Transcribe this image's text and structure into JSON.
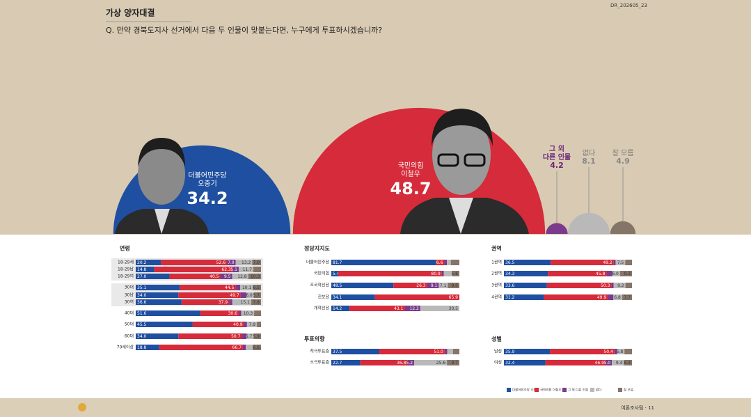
{
  "header": {
    "section": "가상 양자대결",
    "question": "Q. 만약 경북도지사 선거에서 다음 두 인물이 맞붙는다면, 누구에게 투표하시겠습니까?",
    "code": "DR_202605_23"
  },
  "footer": {
    "page": "여론조사팀 · 11"
  },
  "legend": {
    "names": [
      "더불어민주당 오중기",
      "국민의힘 이철우",
      "그 외 다른 인물",
      "없다",
      "잘 모름"
    ],
    "colors": [
      "#1f4fa0",
      "#d62b3a",
      "#7b3a8c",
      "#b9b9b9",
      "#857468"
    ]
  },
  "chart_data": [
    {
      "type": "semicircle",
      "labels": [
        [
          "더불어민주당",
          "오중기"
        ],
        [
          "국민의힘",
          "이철우"
        ],
        [
          "그 외",
          "다른 인물"
        ],
        [
          "없다"
        ],
        [
          "잘 모름"
        ]
      ],
      "values": [
        34.2,
        48.7,
        4.2,
        8.1,
        4.9
      ]
    },
    {
      "type": "stacked-hbar",
      "title": "연령",
      "xlim": [
        0,
        100
      ],
      "categories": [
        "18-29세",
        "18-29남",
        "18-29여",
        "30대",
        "30남",
        "30여",
        "40대",
        "50대",
        "60대",
        "70세이상"
      ],
      "values": [
        [
          20.2,
          52.6,
          7.0,
          13.2,
          7.0
        ],
        [
          14.8,
          62.3,
          5.1,
          11.7,
          6.1
        ],
        [
          27.0,
          40.5,
          9.5,
          12.8,
          10.3
        ],
        [
          35.1,
          44.5,
          3.8,
          10.1,
          6.5
        ],
        [
          34.0,
          49.7,
          4.6,
          6.0,
          5.7
        ],
        [
          36.6,
          37.9,
          2.6,
          15.1,
          7.8
        ],
        [
          51.6,
          30.6,
          2.0,
          10.3,
          5.5
        ],
        [
          45.5,
          40.9,
          2.4,
          7.9,
          3.3
        ],
        [
          34.0,
          50.7,
          3.7,
          5.7,
          5.9
        ],
        [
          18.8,
          66.7,
          2.4,
          5.5,
          6.6
        ]
      ],
      "value_labels": [
        [
          "20.2",
          "52.6",
          "7.0",
          "13.2",
          "7.0"
        ],
        [
          "14.8",
          "62.3",
          "5.1",
          "11.7",
          null
        ],
        [
          "27.0",
          "40.5",
          "9.5",
          "12.8",
          "10.3"
        ],
        [
          "35.1",
          "44.5",
          null,
          "10.1",
          "6.5"
        ],
        [
          "34.0",
          "49.7",
          null,
          "6.0",
          "5.7"
        ],
        [
          "36.6",
          "37.9",
          null,
          "15.1",
          "7.8"
        ],
        [
          "51.6",
          "30.6",
          null,
          "10.3",
          null
        ],
        [
          "45.5",
          "40.9",
          null,
          "7.9",
          null
        ],
        [
          "34.0",
          "50.7",
          null,
          "5.7",
          "5.9"
        ],
        [
          "18.8",
          "66.7",
          null,
          null,
          "6.6"
        ]
      ]
    },
    {
      "type": "stacked-hbar",
      "title": "정당지지도",
      "xlim": [
        0,
        100
      ],
      "categories": [
        "더불어민주당",
        "국민의힘",
        "조국혁신당",
        "진보당",
        "개혁신당"
      ],
      "values": [
        [
          81.7,
          6.6,
          2.0,
          3.0,
          6.7
        ],
        [
          5.4,
          80.9,
          1.6,
          6.5,
          5.6
        ],
        [
          48.5,
          26.3,
          9.1,
          7.1,
          9.0
        ],
        [
          34.1,
          65.9,
          0,
          0,
          0
        ],
        [
          14.2,
          43.1,
          12.2,
          30.5,
          0
        ]
      ],
      "value_labels": [
        [
          "81.7",
          "6.6",
          null,
          null,
          null
        ],
        [
          "5.4",
          "80.9",
          null,
          null,
          "5.6"
        ],
        [
          "48.5",
          "26.3",
          "9.1",
          "7.1",
          "9.0"
        ],
        [
          "34.1",
          "65.9",
          null,
          null,
          null
        ],
        [
          "14.2",
          "43.1",
          "12.2",
          "30.5",
          null
        ]
      ]
    },
    {
      "type": "stacked-hbar",
      "title": "투표의향",
      "xlim": [
        0,
        100
      ],
      "categories": [
        "적극투표층",
        "소극투표층"
      ],
      "values": [
        [
          37.5,
          51.0,
          2.0,
          4.5,
          5.0
        ],
        [
          22.7,
          36.8,
          5.2,
          25.6,
          9.7
        ]
      ],
      "value_labels": [
        [
          "37.5",
          "51.0",
          null,
          null,
          null
        ],
        [
          "22.7",
          "36.8",
          "5.2",
          "25.6",
          "9.7"
        ]
      ]
    },
    {
      "type": "stacked-hbar",
      "title": "권역",
      "xlim": [
        0,
        100
      ],
      "categories": [
        "1권역",
        "2권역",
        "3권역",
        "4권역"
      ],
      "values": [
        [
          36.5,
          49.2,
          1.5,
          7.5,
          5.3
        ],
        [
          34.3,
          45.8,
          4.6,
          6.0,
          9.3
        ],
        [
          33.6,
          50.3,
          1.8,
          9.2,
          5.1
        ],
        [
          31.2,
          49.9,
          4.4,
          6.8,
          7.7
        ]
      ],
      "value_labels": [
        [
          "36.5",
          "49.2",
          null,
          "7.5",
          null
        ],
        [
          "34.3",
          "45.8",
          null,
          "6.0",
          "9.3"
        ],
        [
          "33.6",
          "50.3",
          null,
          "9.2",
          null
        ],
        [
          "31.2",
          "49.9",
          null,
          "6.8",
          "7.7"
        ]
      ]
    },
    {
      "type": "stacked-hbar",
      "title": "성별",
      "xlim": [
        0,
        100
      ],
      "categories": [
        "남성",
        "여성"
      ],
      "values": [
        [
          35.9,
          50.4,
          2.0,
          5.8,
          5.9
        ],
        [
          32.4,
          46.9,
          5.0,
          9.4,
          6.3
        ]
      ],
      "value_labels": [
        [
          "35.9",
          "50.4",
          null,
          "5.8",
          null
        ],
        [
          "32.4",
          "46.9",
          "5.0",
          "9.4",
          "6.3"
        ]
      ]
    }
  ]
}
